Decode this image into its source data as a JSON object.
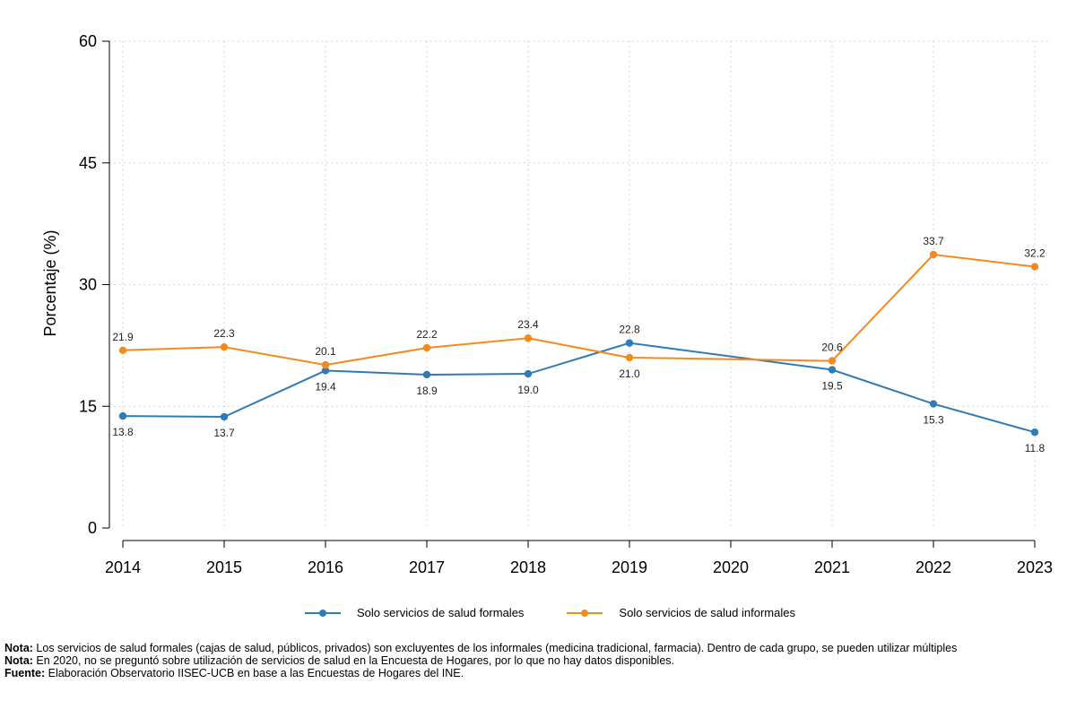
{
  "chart_data": {
    "type": "line",
    "title": "",
    "xlabel": "",
    "ylabel": "Porcentaje (%)",
    "ylim": [
      0,
      60
    ],
    "yticks": [
      0,
      15,
      30,
      45,
      60
    ],
    "ytick_labels": [
      "0",
      "15",
      "30",
      "45",
      "60"
    ],
    "categories": [
      "2014",
      "2015",
      "2016",
      "2017",
      "2018",
      "2019",
      "2020",
      "2021",
      "2022",
      "2023"
    ],
    "grid": true,
    "legend_position": "bottom",
    "series": [
      {
        "name": "Solo servicios de salud formales",
        "color": "#2f7bb6",
        "values": [
          13.8,
          13.7,
          19.4,
          18.9,
          19.0,
          22.8,
          null,
          19.5,
          15.3,
          11.8
        ],
        "labels": [
          "13.8",
          "13.7",
          "19.4",
          "18.9",
          "19.0",
          "22.8",
          "",
          "19.5",
          "15.3",
          "11.8"
        ],
        "label_side": [
          "below",
          "below",
          "below",
          "below",
          "below",
          "above",
          "",
          "below",
          "below",
          "below"
        ]
      },
      {
        "name": "Solo servicios de salud informales",
        "color": "#f28a1e",
        "values": [
          21.9,
          22.3,
          20.1,
          22.2,
          23.4,
          21.0,
          null,
          20.6,
          33.7,
          32.2
        ],
        "labels": [
          "21.9",
          "22.3",
          "20.1",
          "22.2",
          "23.4",
          "21.0",
          "",
          "20.6",
          "33.7",
          "32.2"
        ],
        "label_side": [
          "above",
          "above",
          "above",
          "above",
          "above",
          "below",
          "",
          "above",
          "above",
          "above"
        ]
      }
    ]
  },
  "notes": [
    {
      "prefix": "Nota:",
      "text": " Los servicios de salud formales (cajas de salud, públicos, privados) son excluyentes de los informales (medicina tradicional, farmacia). Dentro de cada grupo, se pueden utilizar múltiples"
    },
    {
      "prefix": "Nota:",
      "text": " En 2020, no se preguntó sobre utilización de servicios de salud en la Encuesta de Hogares, por lo que no hay datos disponibles."
    },
    {
      "prefix": "Fuente:",
      "text": " Elaboración Observatorio IISEC-UCB en base a las Encuestas de Hogares del INE."
    }
  ]
}
